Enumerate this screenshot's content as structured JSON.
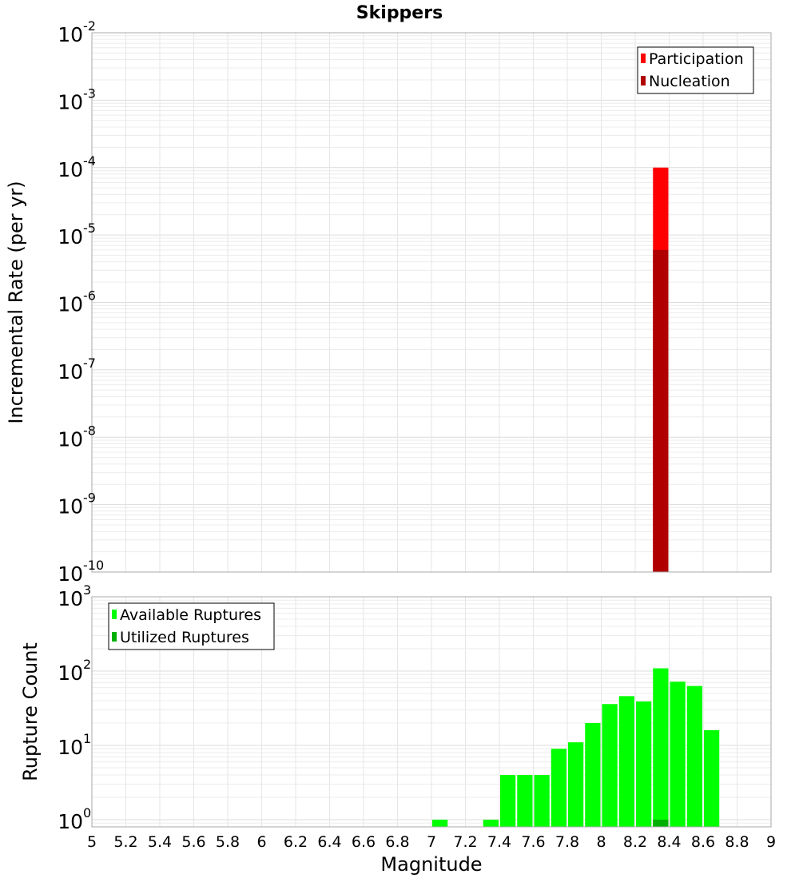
{
  "title": "Skippers",
  "chart_data": [
    {
      "type": "bar",
      "scale": "log",
      "ylabel": "Incremental Rate (per yr)",
      "ylim": [
        1e-10,
        0.01
      ],
      "xlim": [
        5,
        9
      ],
      "bin_width": 0.1,
      "y_ticks": [
        {
          "base": "10",
          "exp": "-2"
        },
        {
          "base": "10",
          "exp": "-3"
        },
        {
          "base": "10",
          "exp": "-4"
        },
        {
          "base": "10",
          "exp": "-5"
        },
        {
          "base": "10",
          "exp": "-6"
        },
        {
          "base": "10",
          "exp": "-7"
        },
        {
          "base": "10",
          "exp": "-8"
        },
        {
          "base": "10",
          "exp": "-9"
        },
        {
          "base": "10",
          "exp": "-10"
        }
      ],
      "legend": {
        "position": "top-right",
        "entries": [
          {
            "label": "Participation",
            "color": "#ff0000"
          },
          {
            "label": "Nucleation",
            "color": "#b00000"
          }
        ]
      },
      "series": [
        {
          "name": "Participation",
          "color": "#ff0000",
          "x": [
            8.35
          ],
          "values": [
            0.0001
          ]
        },
        {
          "name": "Nucleation",
          "color": "#b00000",
          "x": [
            8.35
          ],
          "values": [
            6e-06
          ]
        }
      ]
    },
    {
      "type": "bar",
      "scale": "log",
      "xlabel": "Magnitude",
      "ylabel": "Rupture Count",
      "ylim": [
        0.8,
        1000
      ],
      "xlim": [
        5,
        9
      ],
      "bin_width": 0.1,
      "x_ticks": [
        "5",
        "5.2",
        "5.4",
        "5.6",
        "5.8",
        "6",
        "6.2",
        "6.4",
        "6.6",
        "6.8",
        "7",
        "7.2",
        "7.4",
        "7.6",
        "7.8",
        "8",
        "8.2",
        "8.4",
        "8.6",
        "8.8",
        "9"
      ],
      "y_ticks": [
        {
          "base": "10",
          "exp": "3"
        },
        {
          "base": "10",
          "exp": "2"
        },
        {
          "base": "10",
          "exp": "1"
        },
        {
          "base": "10",
          "exp": "0"
        }
      ],
      "legend": {
        "position": "top-left",
        "entries": [
          {
            "label": "Available Ruptures",
            "color": "#00ff00"
          },
          {
            "label": "Utilized Ruptures",
            "color": "#00b000"
          }
        ]
      },
      "series": [
        {
          "name": "Available Ruptures",
          "color": "#00ff00",
          "x": [
            7.05,
            7.35,
            7.45,
            7.55,
            7.65,
            7.75,
            7.85,
            7.95,
            8.05,
            8.15,
            8.25,
            8.35,
            8.45,
            8.55,
            8.65
          ],
          "values": [
            1,
            1,
            4,
            4,
            4,
            9,
            11,
            20,
            36,
            46,
            39,
            109,
            72,
            63,
            16
          ]
        },
        {
          "name": "Utilized Ruptures",
          "color": "#00b000",
          "x": [
            8.35
          ],
          "values": [
            1
          ]
        }
      ]
    }
  ]
}
